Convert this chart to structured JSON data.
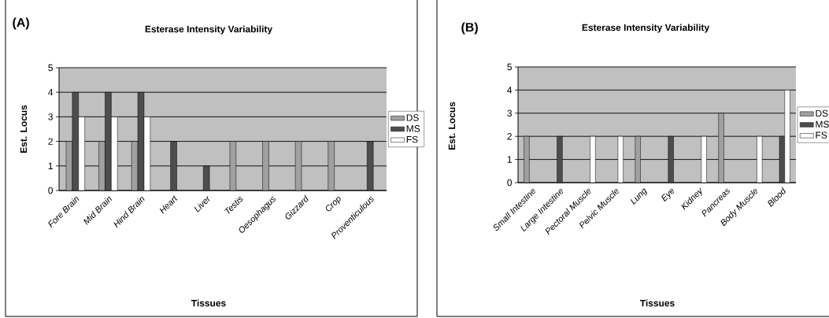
{
  "chart_data": [
    {
      "type": "bar",
      "title": "Esterase Intensity Variability",
      "annotations": [
        "(A)"
      ],
      "xlabel": "Tissues",
      "ylabel": "Est. Locus",
      "categories": [
        "Fore Brain",
        "Mid Brain",
        "Hind Brain",
        "Heart",
        "Liver",
        "Testis",
        "Oesophagus",
        "Gizzard",
        "Crop",
        "Proventiculous"
      ],
      "series": [
        {
          "name": "DS",
          "color": "#a0a0a0",
          "values": [
            2,
            2,
            2,
            null,
            null,
            2,
            2,
            2,
            2,
            null
          ]
        },
        {
          "name": "MS",
          "color": "#4d4d4d",
          "values": [
            4,
            4,
            4,
            2,
            1,
            null,
            null,
            null,
            null,
            2
          ]
        },
        {
          "name": "FS",
          "color": "#ffffff",
          "values": [
            3,
            3,
            3,
            null,
            null,
            null,
            null,
            null,
            null,
            null
          ]
        }
      ],
      "ylim": [
        0,
        5
      ],
      "yticks": [
        0,
        1,
        2,
        3,
        4,
        5
      ],
      "grid": "y",
      "legend": "right"
    },
    {
      "type": "bar",
      "title": "Esterase Intensity Variability",
      "annotations": [
        "(B)"
      ],
      "xlabel": "Tissues",
      "ylabel": "Est. Locus",
      "categories": [
        "Small Intestine",
        "Large Intestine",
        "Pectoral Muscle",
        "Pelvic Muscle",
        "Lung",
        "Eye",
        "Kidney",
        "Pancreas",
        "Body Muscle",
        "Blood"
      ],
      "series": [
        {
          "name": "DS",
          "color": "#a0a0a0",
          "values": [
            2,
            null,
            null,
            null,
            2,
            null,
            null,
            3,
            null,
            null
          ]
        },
        {
          "name": "MS",
          "color": "#4d4d4d",
          "values": [
            null,
            2,
            null,
            null,
            null,
            2,
            null,
            null,
            null,
            2
          ]
        },
        {
          "name": "FS",
          "color": "#ffffff",
          "values": [
            null,
            null,
            2,
            2,
            null,
            null,
            2,
            null,
            2,
            4
          ]
        }
      ],
      "ylim": [
        0,
        5
      ],
      "yticks": [
        0,
        1,
        2,
        3,
        4,
        5
      ],
      "grid": "y",
      "legend": "right"
    }
  ]
}
